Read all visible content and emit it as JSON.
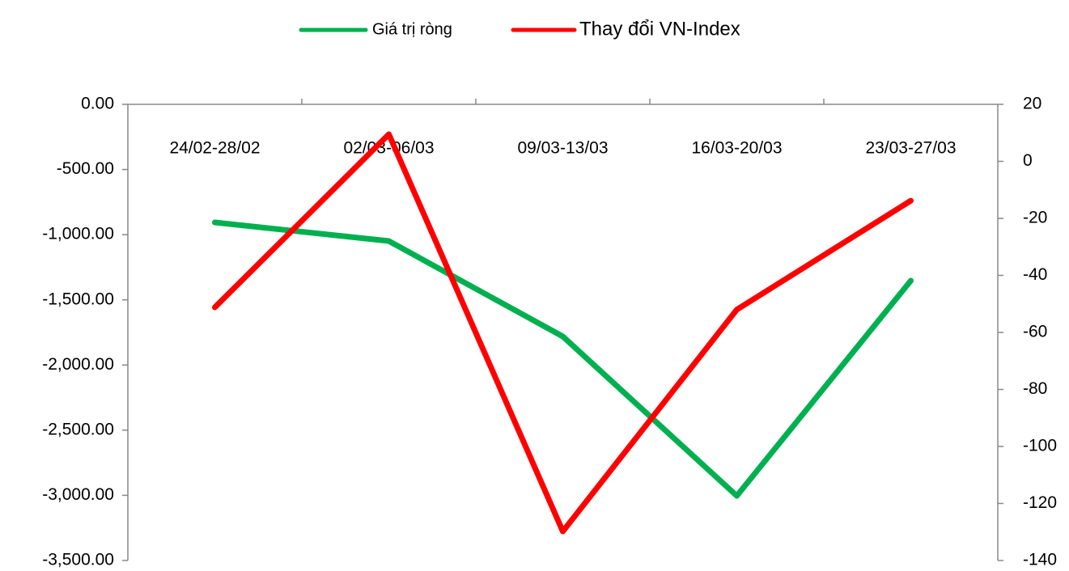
{
  "chart_data": {
    "type": "line",
    "categories": [
      "24/02-28/02",
      "02/03-06/03",
      "09/03-13/03",
      "16/03-20/03",
      "23/03-27/03"
    ],
    "series": [
      {
        "name": "Giá trị ròng",
        "color": "#00b050",
        "values": [
          -906,
          -1049,
          -1781,
          -3004,
          -1353
        ]
      },
      {
        "name": "Thay đổi VN-Index",
        "color": "#ff0000",
        "axis": "y2",
        "values": [
          -51.2,
          9.5,
          -129.8,
          -52,
          -13.8
        ]
      }
    ],
    "ylim": [
      -3500,
      0
    ],
    "yticks": [
      {
        "value": 0,
        "label": "0.00"
      },
      {
        "value": -500,
        "label": "-500.00"
      },
      {
        "value": -1000,
        "label": "-1,000.00"
      },
      {
        "value": -1500,
        "label": "-1,500.00"
      },
      {
        "value": -2000,
        "label": "-2,000.00"
      },
      {
        "value": -2500,
        "label": "-2,500.00"
      },
      {
        "value": -3000,
        "label": "-3,000.00"
      },
      {
        "value": -3500,
        "label": "-3,500.00"
      }
    ],
    "y2lim": [
      -140,
      20
    ],
    "y2ticks": [
      20,
      0,
      -20,
      -40,
      -60,
      -80,
      -100,
      -120,
      -140
    ]
  }
}
